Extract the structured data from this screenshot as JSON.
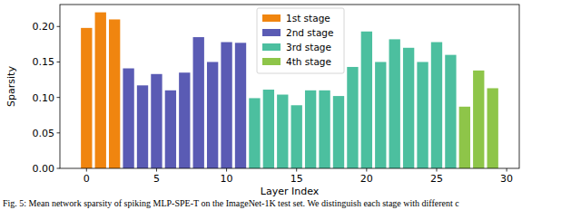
{
  "chart_data": {
    "type": "bar",
    "caption": "Fig. 5: Mean network sparsity of spiking MLP-SPE-T on the ImageNet-1K test set. We distinguish each stage with different c",
    "x_label": "Layer Index",
    "y_label": "Sparsity",
    "series": [
      {
        "name": "1st stage",
        "color": "#f0850f",
        "x": [
          0,
          1,
          2
        ],
        "values": [
          0.198,
          0.22,
          0.21
        ]
      },
      {
        "name": "2nd stage",
        "color": "#5a5bb4",
        "x": [
          3,
          4,
          5,
          6,
          7,
          8,
          9,
          10,
          11
        ],
        "values": [
          0.141,
          0.117,
          0.133,
          0.11,
          0.135,
          0.185,
          0.15,
          0.178,
          0.177
        ]
      },
      {
        "name": "3rd stage",
        "color": "#4cbf9f",
        "x": [
          12,
          13,
          14,
          15,
          16,
          17,
          18,
          19,
          20,
          21,
          22,
          23,
          24,
          25,
          26
        ],
        "values": [
          0.099,
          0.111,
          0.104,
          0.089,
          0.11,
          0.11,
          0.102,
          0.143,
          0.193,
          0.15,
          0.182,
          0.17,
          0.15,
          0.178,
          0.16
        ]
      },
      {
        "name": "4th stage",
        "color": "#8ec549",
        "x": [
          27,
          28,
          29
        ],
        "values": [
          0.087,
          0.138,
          0.113
        ]
      }
    ],
    "xlim": [
      -1.9,
      30.9
    ],
    "xticks": [
      0,
      5,
      10,
      15,
      20,
      25,
      30
    ],
    "ylim": [
      0,
      0.231
    ],
    "yticks": [
      {
        "value": 0,
        "label": "0.00"
      },
      {
        "value": 0.05,
        "label": "0.05"
      },
      {
        "value": 0.1,
        "label": "0.10"
      },
      {
        "value": 0.15,
        "label": "0.15"
      },
      {
        "value": 0.2,
        "label": "0.20"
      }
    ],
    "legend": "upper center",
    "grid": false
  }
}
